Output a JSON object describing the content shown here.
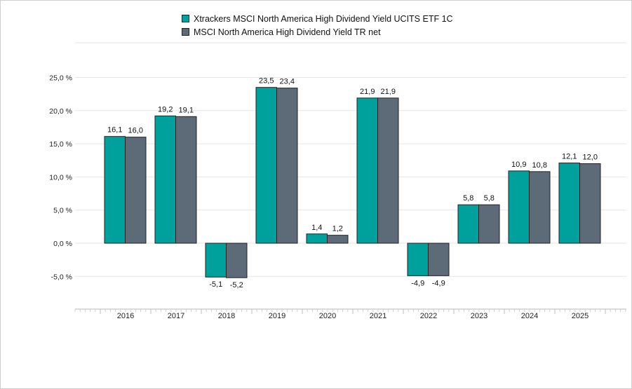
{
  "chart_data": {
    "type": "bar",
    "categories": [
      "2016",
      "2017",
      "2018",
      "2019",
      "2020",
      "2021",
      "2022",
      "2023",
      "2024",
      "2025"
    ],
    "series": [
      {
        "name": "Xtrackers MSCI North America High Dividend Yield UCITS ETF 1C",
        "color": "#00a19d",
        "values": [
          16.1,
          19.2,
          -5.1,
          23.5,
          1.4,
          21.9,
          -4.9,
          5.8,
          10.9,
          12.1
        ],
        "labels": [
          "16,1",
          "19,2",
          "-5,1",
          "23,5",
          "1,4",
          "21,9",
          "-4,9",
          "5,8",
          "10,9",
          "12,1"
        ]
      },
      {
        "name": "MSCI North America High Dividend Yield TR net",
        "color": "#5c6b77",
        "values": [
          16.0,
          19.1,
          -5.2,
          23.4,
          1.2,
          21.9,
          -4.9,
          5.8,
          10.8,
          12.0
        ],
        "labels": [
          "16,0",
          "19,1",
          "-5,2",
          "23,4",
          "1,2",
          "21,9",
          "-4,9",
          "5,8",
          "10,8",
          "12,0"
        ]
      }
    ],
    "yticks": [
      -5,
      0,
      5,
      10,
      15,
      20,
      25
    ],
    "ytick_labels": [
      "-5,0 %",
      "0,0 %",
      "5,0 %",
      "10,0 %",
      "15,0 %",
      "20,0 %",
      "25,0 %"
    ],
    "ylim": [
      -10,
      30
    ],
    "grid": true,
    "legend_position": "top-center",
    "title": "",
    "xlabel": "",
    "ylabel": ""
  }
}
